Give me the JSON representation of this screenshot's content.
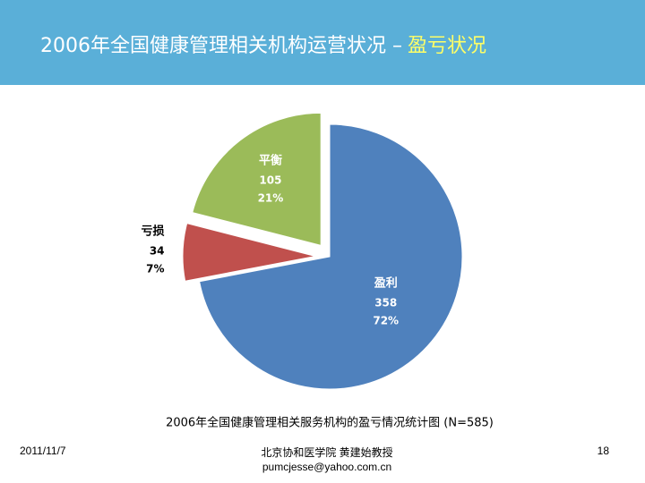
{
  "slide": {
    "title": "2006年全国健康管理相关机构运营状况 –",
    "title_highlight": "盈亏状况",
    "footer_date": "2011/11/7",
    "footer_author": "北京协和医学院 黄建始教授",
    "footer_email": "pumcjesse@yahoo.com.cn",
    "page_number": "18"
  },
  "chart_data": {
    "type": "pie",
    "caption": "2006年全国健康管理相关服务机构的盈亏情况统计图 (N=585)",
    "categories": [
      "盈利",
      "亏损",
      "平衡"
    ],
    "values": [
      358,
      34,
      105
    ],
    "percents": [
      72,
      7,
      21
    ],
    "percent_labels": [
      "72%",
      "7%",
      "21%"
    ],
    "colors": [
      "#4f81bd",
      "#c0504d",
      "#9bbb59"
    ],
    "explode": [
      false,
      true,
      true
    ]
  }
}
